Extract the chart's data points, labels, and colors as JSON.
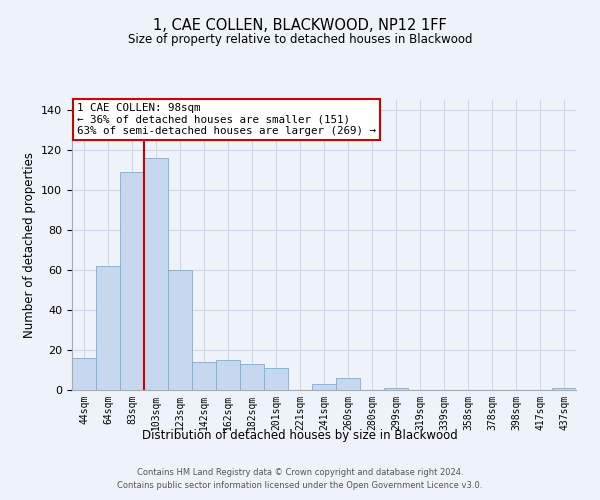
{
  "title": "1, CAE COLLEN, BLACKWOOD, NP12 1FF",
  "subtitle": "Size of property relative to detached houses in Blackwood",
  "xlabel": "Distribution of detached houses by size in Blackwood",
  "ylabel": "Number of detached properties",
  "categories": [
    "44sqm",
    "64sqm",
    "83sqm",
    "103sqm",
    "123sqm",
    "142sqm",
    "162sqm",
    "182sqm",
    "201sqm",
    "221sqm",
    "241sqm",
    "260sqm",
    "280sqm",
    "299sqm",
    "319sqm",
    "339sqm",
    "358sqm",
    "378sqm",
    "398sqm",
    "417sqm",
    "437sqm"
  ],
  "values": [
    16,
    62,
    109,
    116,
    60,
    14,
    15,
    13,
    11,
    0,
    3,
    6,
    0,
    1,
    0,
    0,
    0,
    0,
    0,
    0,
    1
  ],
  "bar_color": "#c5d8f0",
  "bar_edge_color": "#7bafd4",
  "bar_edge_width": 0.6,
  "marker_color": "#cc0000",
  "annotation_title": "1 CAE COLLEN: 98sqm",
  "annotation_line1": "← 36% of detached houses are smaller (151)",
  "annotation_line2": "63% of semi-detached houses are larger (269) →",
  "annotation_box_color": "#ffffff",
  "annotation_box_edge": "#cc0000",
  "ylim": [
    0,
    145
  ],
  "yticks": [
    0,
    20,
    40,
    60,
    80,
    100,
    120,
    140
  ],
  "grid_color": "#d0d8e8",
  "background_color": "#eef2f9",
  "footer1": "Contains HM Land Registry data © Crown copyright and database right 2024.",
  "footer2": "Contains public sector information licensed under the Open Government Licence v3.0."
}
